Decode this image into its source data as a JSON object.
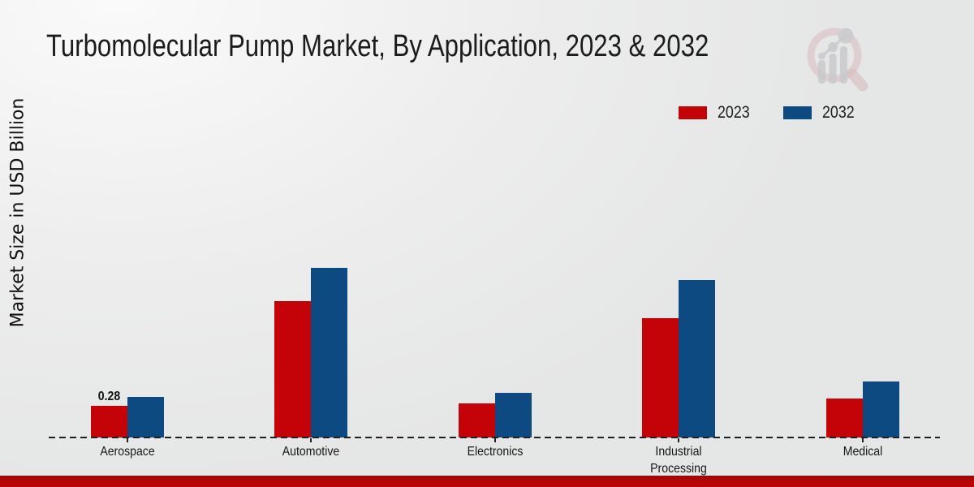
{
  "chart_data": {
    "type": "bar",
    "title": "Turbomolecular Pump Market, By Application, 2023 & 2032",
    "ylabel": "Market Size in USD Billion",
    "xlabel": "",
    "categories": [
      "Aerospace",
      "Automotive",
      "Electronics",
      "Industrial Processing",
      "Medical"
    ],
    "series": [
      {
        "name": "2023",
        "color": "#c40309",
        "values": [
          0.28,
          1.21,
          0.3,
          1.06,
          0.35
        ],
        "bar_labels": [
          "0.28",
          "",
          "",
          "",
          ""
        ]
      },
      {
        "name": "2032",
        "color": "#0d4a82",
        "values": [
          0.36,
          1.51,
          0.4,
          1.4,
          0.5
        ],
        "bar_labels": [
          "",
          "",
          "",
          "",
          ""
        ]
      }
    ],
    "ylim": [
      0,
      1.75
    ],
    "grid": false,
    "y_axis_ticks_visible": false,
    "legend_position": "top-right",
    "baseline_style": "dashed"
  },
  "footer": {
    "band_color": "#b80404"
  },
  "logo": {
    "description": "magnifying-glass bar-chart watermark"
  }
}
